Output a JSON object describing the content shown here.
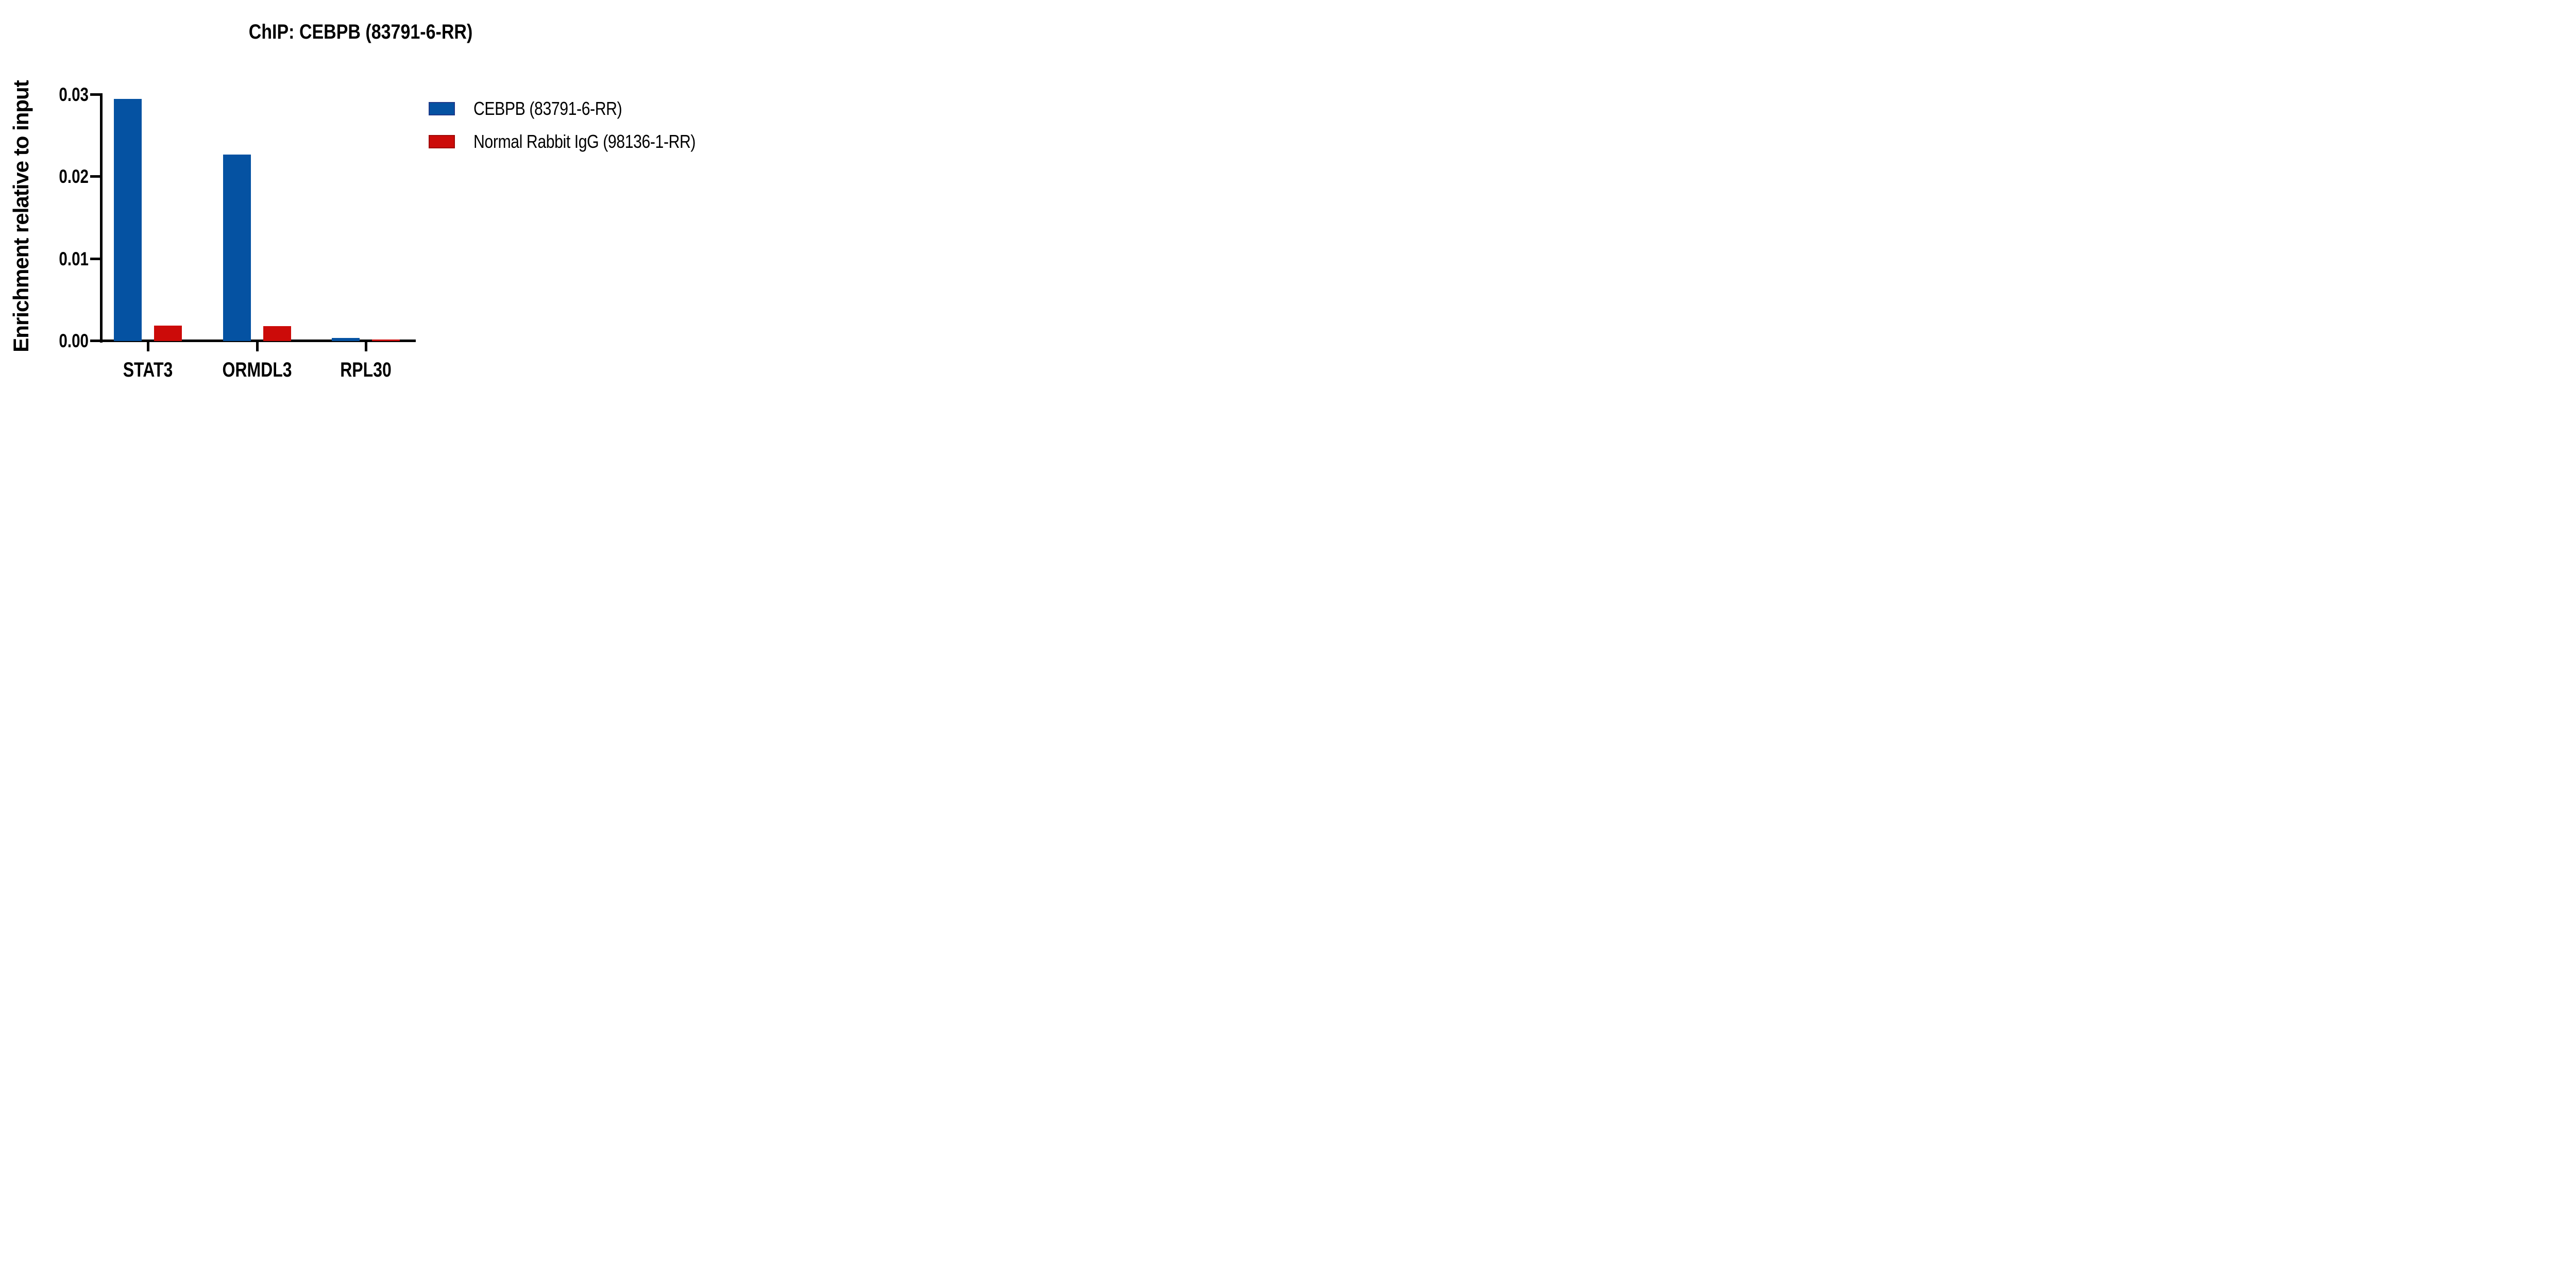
{
  "figure": {
    "title": "ChIP: CEBPB (83791-6-RR)"
  },
  "chart_data": {
    "type": "bar",
    "title": "ChIP: CEBPB (83791-6-RR)",
    "xlabel": "",
    "ylabel": "Enrichment relative to input",
    "categories": [
      "STAT3",
      "ORMDL3",
      "RPL30"
    ],
    "series": [
      {
        "name": "CEBPB (83791-6-RR)",
        "color": "#0552A2",
        "swatch_border": "#1E3A8A",
        "values": [
          0.0295,
          0.0227,
          0.0004
        ]
      },
      {
        "name": "Normal Rabbit IgG (98136-1-RR)",
        "color": "#CC0B09",
        "swatch_border": "#A00806",
        "values": [
          0.0019,
          0.0018,
          0.0002
        ]
      }
    ],
    "ylim": [
      0,
      0.03
    ],
    "y_ticks": [
      {
        "value": 0.0,
        "label": "0.00"
      },
      {
        "value": 0.01,
        "label": "0.01"
      },
      {
        "value": 0.02,
        "label": "0.02"
      },
      {
        "value": 0.03,
        "label": "0.03"
      }
    ],
    "grid": false,
    "legend_position": "right-top",
    "axis_color": "#000000",
    "text_color": "#000000"
  }
}
